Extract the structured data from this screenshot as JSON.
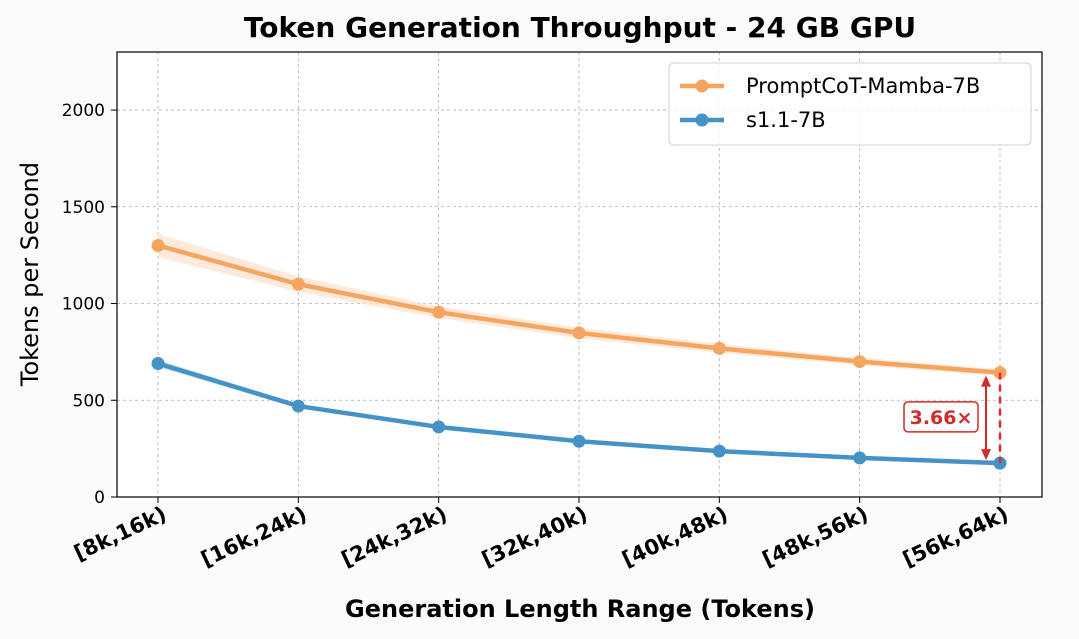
{
  "chart_data": {
    "type": "line",
    "title": "Token Generation Throughput - 24 GB GPU",
    "xlabel": "Generation Length Range (Tokens)",
    "ylabel": "Tokens per Second",
    "categories": [
      "[8k,16k)",
      "[16k,24k)",
      "[24k,32k)",
      "[32k,40k)",
      "[40k,48k)",
      "[48k,56k)",
      "[56k,64k)"
    ],
    "ylim": [
      0,
      2300
    ],
    "yticks": [
      0,
      500,
      1000,
      1500,
      2000
    ],
    "grid": true,
    "legend_position": "top-right",
    "series": [
      {
        "name": "PromptCoT-Mamba-7B",
        "color": "#f5a55f",
        "band_color": "#fde3cf",
        "values": [
          1300,
          1100,
          955,
          848,
          768,
          700,
          643
        ],
        "band": [
          [
            1240,
            1360
          ],
          [
            1060,
            1140
          ],
          [
            925,
            985
          ],
          [
            820,
            876
          ],
          [
            745,
            791
          ],
          [
            680,
            720
          ],
          [
            625,
            661
          ]
        ]
      },
      {
        "name": "s1.1-7B",
        "color": "#4592c6",
        "band_color": "#c6dcee",
        "values": [
          690,
          470,
          362,
          288,
          237,
          202,
          175
        ],
        "band": [
          [
            670,
            710
          ],
          [
            460,
            480
          ],
          [
            352,
            372
          ],
          [
            282,
            294
          ],
          [
            233,
            241
          ],
          [
            198,
            206
          ],
          [
            172,
            178
          ]
        ]
      }
    ],
    "annotation": {
      "label": "3.66×",
      "color": "#d42a2a",
      "category_index": 6
    }
  }
}
